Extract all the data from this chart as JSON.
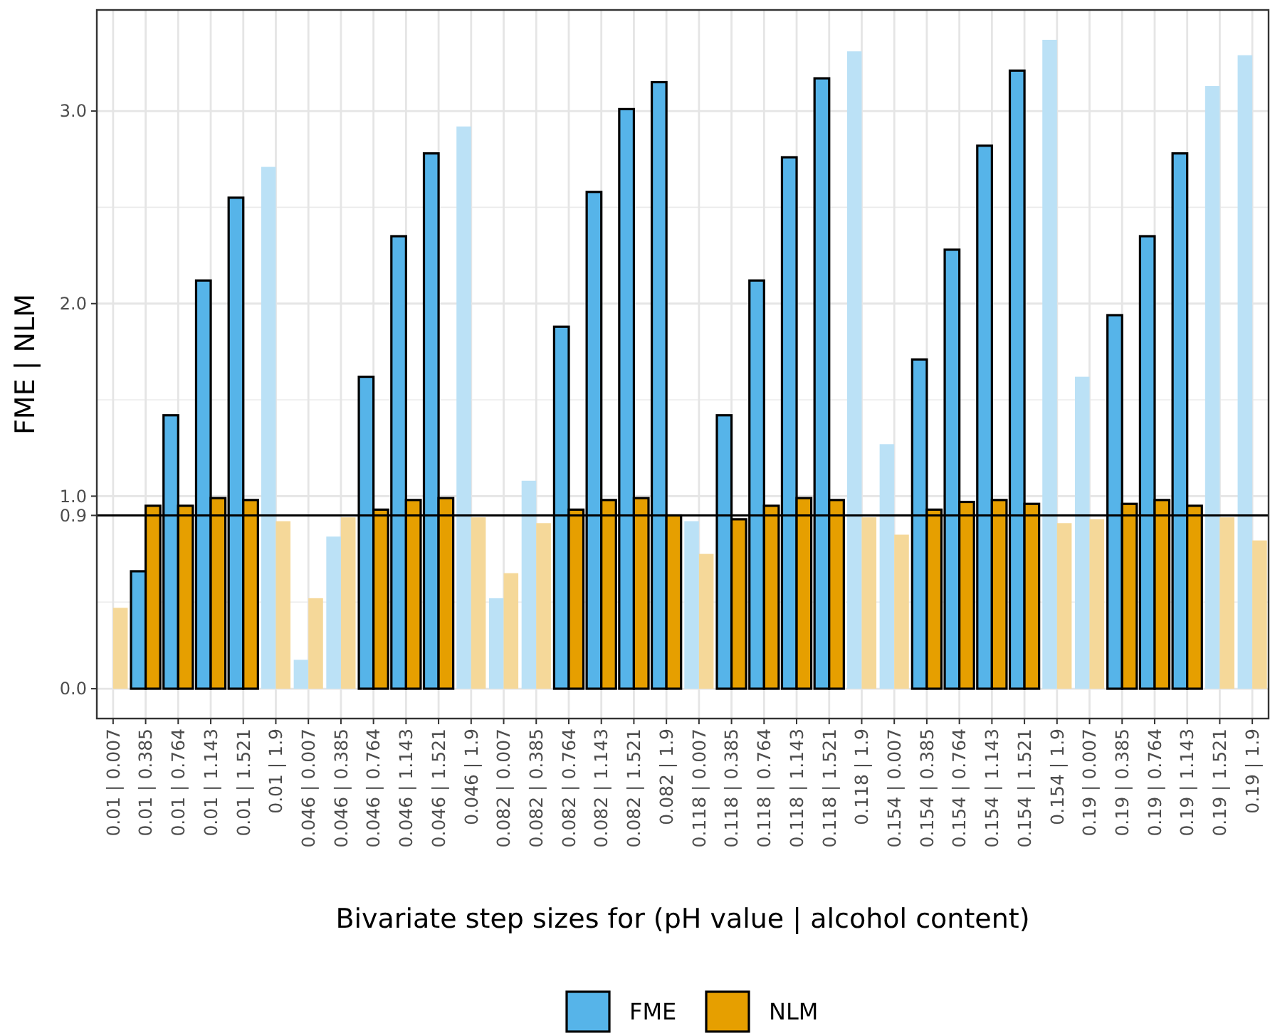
{
  "chart_data": {
    "type": "bar",
    "xlabel": "Bivariate step sizes for (pH value | alcohol content)",
    "ylabel": "FME | NLM",
    "categories": [
      "0.01 | 0.007",
      "0.01 | 0.385",
      "0.01 | 0.764",
      "0.01 | 1.143",
      "0.01 | 1.521",
      "0.01 | 1.9",
      "0.046 | 0.007",
      "0.046 | 0.385",
      "0.046 | 0.764",
      "0.046 | 1.143",
      "0.046 | 1.521",
      "0.046 | 1.9",
      "0.082 | 0.007",
      "0.082 | 0.385",
      "0.082 | 0.764",
      "0.082 | 1.143",
      "0.082 | 1.521",
      "0.082 | 1.9",
      "0.118 | 0.007",
      "0.118 | 0.385",
      "0.118 | 0.764",
      "0.118 | 1.143",
      "0.118 | 1.521",
      "0.118 | 1.9",
      "0.154 | 0.007",
      "0.154 | 0.385",
      "0.154 | 0.764",
      "0.154 | 1.143",
      "0.154 | 1.521",
      "0.154 | 1.9",
      "0.19 | 0.007",
      "0.19 | 0.385",
      "0.19 | 0.764",
      "0.19 | 1.143",
      "0.19 | 1.521",
      "0.19 | 1.9"
    ],
    "series": [
      {
        "name": "FME",
        "color": "#56b4e9",
        "values": [
          0.0,
          0.61,
          1.42,
          2.12,
          2.55,
          2.71,
          0.15,
          0.79,
          1.62,
          2.35,
          2.78,
          2.92,
          0.47,
          1.08,
          1.88,
          2.58,
          3.01,
          3.15,
          0.87,
          1.42,
          2.12,
          2.76,
          3.17,
          3.31,
          1.27,
          1.71,
          2.28,
          2.82,
          3.21,
          3.37,
          1.62,
          1.94,
          2.35,
          2.78,
          3.13,
          3.29
        ],
        "colors": [
          "#bbe1f6",
          "#56b4e9",
          "#56b4e9",
          "#56b4e9",
          "#56b4e9",
          "#bbe1f6",
          "#bbe1f6",
          "#bbe1f6",
          "#56b4e9",
          "#56b4e9",
          "#56b4e9",
          "#bbe1f6",
          "#bbe1f6",
          "#bbe1f6",
          "#56b4e9",
          "#56b4e9",
          "#56b4e9",
          "#56b4e9",
          "#bbe1f6",
          "#56b4e9",
          "#56b4e9",
          "#56b4e9",
          "#56b4e9",
          "#bbe1f6",
          "#bbe1f6",
          "#56b4e9",
          "#56b4e9",
          "#56b4e9",
          "#56b4e9",
          "#bbe1f6",
          "#bbe1f6",
          "#56b4e9",
          "#56b4e9",
          "#56b4e9",
          "#bbe1f6",
          "#bbe1f6"
        ]
      },
      {
        "name": "NLM",
        "color": "#e69f00",
        "values": [
          0.42,
          0.95,
          0.95,
          0.99,
          0.98,
          0.87,
          0.47,
          0.89,
          0.93,
          0.98,
          0.99,
          0.89,
          0.6,
          0.86,
          0.93,
          0.98,
          0.99,
          0.9,
          0.7,
          0.88,
          0.95,
          0.99,
          0.98,
          0.89,
          0.8,
          0.93,
          0.97,
          0.98,
          0.96,
          0.86,
          0.88,
          0.96,
          0.98,
          0.95,
          0.89,
          0.77
        ],
        "colors": [
          "#f5d899",
          "#e69f00",
          "#e69f00",
          "#e69f00",
          "#e69f00",
          "#f5d899",
          "#f5d899",
          "#f5d899",
          "#e69f00",
          "#e69f00",
          "#e69f00",
          "#f5d899",
          "#f5d899",
          "#f5d899",
          "#e69f00",
          "#e69f00",
          "#e69f00",
          "#e69f00",
          "#f5d899",
          "#e69f00",
          "#e69f00",
          "#e69f00",
          "#e69f00",
          "#f5d899",
          "#f5d899",
          "#e69f00",
          "#e69f00",
          "#e69f00",
          "#e69f00",
          "#f5d899",
          "#f5d899",
          "#e69f00",
          "#e69f00",
          "#e69f00",
          "#f5d899",
          "#f5d899"
        ]
      }
    ],
    "ylim": [
      -0.155,
      3.525
    ],
    "yticks": [
      {
        "value": 0,
        "label": "0.0"
      },
      {
        "value": 0.9,
        "label": "0.9"
      },
      {
        "value": 1,
        "label": "1.0"
      },
      {
        "value": 2,
        "label": "2.0"
      },
      {
        "value": 3,
        "label": "3.0"
      }
    ],
    "ref_lines": [
      {
        "axis": "y",
        "value": 0.9,
        "color": "#000000"
      }
    ],
    "grid": true,
    "legend": "bottom"
  }
}
